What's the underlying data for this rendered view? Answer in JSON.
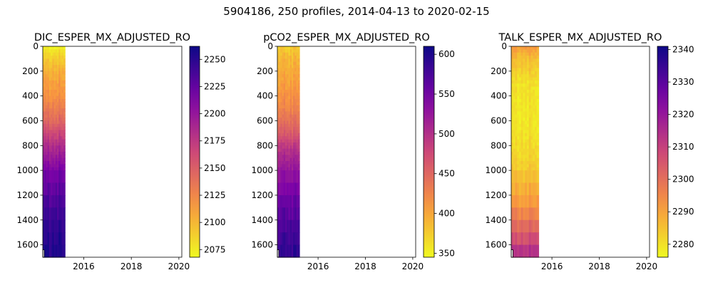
{
  "figure": {
    "suptitle": "5904186, 250 profiles, 2014-04-13 to 2020-02-15"
  },
  "chart_data": [
    {
      "type": "heatmap",
      "title": "DIC_ESPER_MX_ADJUSTED_RO",
      "x_ticks": [
        "2016",
        "2018",
        "2020"
      ],
      "x_range": [
        "2014-04-13",
        "2020-02-15"
      ],
      "y_ticks": [
        "0",
        "200",
        "400",
        "600",
        "800",
        "1000",
        "1200",
        "1400",
        "1600"
      ],
      "y_range": [
        1700,
        0
      ],
      "colormap": "plasma_r",
      "cbar_range": [
        2068,
        2262
      ],
      "cbar_ticks": [
        "2075",
        "2100",
        "2125",
        "2150",
        "2175",
        "2200",
        "2225",
        "2250"
      ],
      "data_extent_x": [
        "2014-04-13",
        "2015-03-20"
      ],
      "depth_profile": [
        [
          0,
          2070
        ],
        [
          60,
          2085
        ],
        [
          200,
          2105
        ],
        [
          400,
          2120
        ],
        [
          600,
          2145
        ],
        [
          800,
          2185
        ],
        [
          1000,
          2215
        ],
        [
          1200,
          2232
        ],
        [
          1400,
          2245
        ],
        [
          1600,
          2252
        ],
        [
          1700,
          2255
        ]
      ]
    },
    {
      "type": "heatmap",
      "title": "pCO2_ESPER_MX_ADJUSTED_RO",
      "x_ticks": [
        "2016",
        "2018",
        "2020"
      ],
      "x_range": [
        "2014-04-13",
        "2020-02-15"
      ],
      "y_ticks": [
        "0",
        "200",
        "400",
        "600",
        "800",
        "1000",
        "1200",
        "1400",
        "1600"
      ],
      "y_range": [
        1700,
        0
      ],
      "colormap": "plasma_r",
      "cbar_range": [
        345,
        610
      ],
      "cbar_ticks": [
        "350",
        "400",
        "450",
        "500",
        "550",
        "600"
      ],
      "data_extent_x": [
        "2014-04-13",
        "2015-03-20"
      ],
      "depth_profile": [
        [
          0,
          375
        ],
        [
          100,
          390
        ],
        [
          300,
          405
        ],
        [
          500,
          425
        ],
        [
          700,
          460
        ],
        [
          800,
          490
        ],
        [
          1000,
          525
        ],
        [
          1200,
          550
        ],
        [
          1400,
          570
        ],
        [
          1600,
          585
        ],
        [
          1700,
          592
        ]
      ]
    },
    {
      "type": "heatmap",
      "title": "TALK_ESPER_MX_ADJUSTED_RO",
      "x_ticks": [
        "2016",
        "2018",
        "2020"
      ],
      "x_range": [
        "2014-04-13",
        "2020-02-15"
      ],
      "y_ticks": [
        "0",
        "200",
        "400",
        "600",
        "800",
        "1000",
        "1200",
        "1400",
        "1600"
      ],
      "y_range": [
        1700,
        0
      ],
      "colormap": "plasma_r",
      "cbar_range": [
        2276,
        2341
      ],
      "cbar_ticks": [
        "2280",
        "2290",
        "2300",
        "2310",
        "2320",
        "2330",
        "2340"
      ],
      "data_extent_x": [
        "2014-04-13",
        "2015-06-10"
      ],
      "depth_profile": [
        [
          0,
          2292
        ],
        [
          100,
          2286
        ],
        [
          300,
          2280
        ],
        [
          600,
          2279
        ],
        [
          800,
          2281
        ],
        [
          1000,
          2284
        ],
        [
          1200,
          2290
        ],
        [
          1400,
          2298
        ],
        [
          1600,
          2310
        ],
        [
          1700,
          2318
        ]
      ]
    }
  ]
}
